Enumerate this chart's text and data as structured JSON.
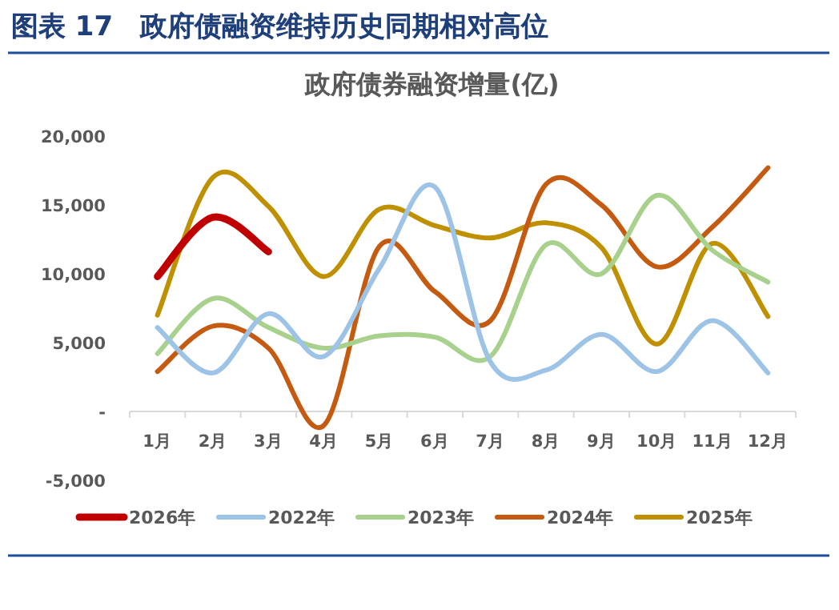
{
  "chart_data": {
    "type": "line",
    "title": "图表 17　政府债融资维持历史同期相对高位",
    "subtitle": "政府债券融资增量(亿)",
    "categories": [
      "1月",
      "2月",
      "3月",
      "4月",
      "5月",
      "6月",
      "7月",
      "8月",
      "9月",
      "10月",
      "11月",
      "12月"
    ],
    "series": [
      {
        "name": "2026年",
        "color": "#c00000",
        "values": [
          9800,
          14100,
          11600,
          null,
          null,
          null,
          null,
          null,
          null,
          null,
          null,
          null
        ]
      },
      {
        "name": "2022年",
        "color": "#9dc3e6",
        "values": [
          6100,
          2800,
          7100,
          4000,
          10400,
          16300,
          3600,
          3000,
          5600,
          2900,
          6600,
          2800
        ]
      },
      {
        "name": "2023年",
        "color": "#a9d18e",
        "values": [
          4200,
          8200,
          6100,
          4600,
          5500,
          5400,
          4000,
          12100,
          10000,
          15700,
          11700,
          9400
        ]
      },
      {
        "name": "2024年",
        "color": "#c55a11",
        "values": [
          2900,
          6200,
          4600,
          -1000,
          12000,
          8700,
          6600,
          16500,
          15000,
          10500,
          13400,
          17700
        ]
      },
      {
        "name": "2025年",
        "color": "#bf9000",
        "values": [
          7000,
          17000,
          14900,
          9800,
          14700,
          13500,
          12600,
          13700,
          11900,
          4900,
          12200,
          6900
        ]
      }
    ],
    "ylim": [
      -5000,
      20000
    ],
    "yticks": [
      {
        "value": -5000,
        "label": "-5,000"
      },
      {
        "value": 0,
        "label": "-"
      },
      {
        "value": 5000,
        "label": "5,000"
      },
      {
        "value": 10000,
        "label": "10,000"
      },
      {
        "value": 15000,
        "label": "15,000"
      },
      {
        "value": 20000,
        "label": "20,000"
      }
    ],
    "grid": false,
    "legend": "bottom",
    "marker": "none",
    "line_style": "solid"
  }
}
